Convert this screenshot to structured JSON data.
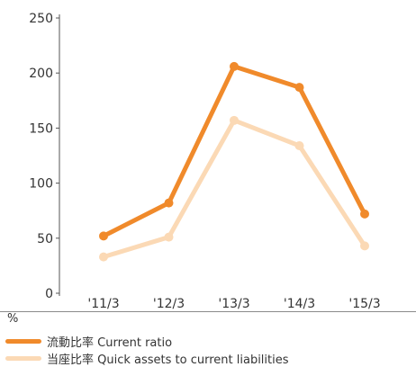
{
  "chart_data": {
    "type": "line",
    "categories": [
      "'11/3",
      "'12/3",
      "'13/3",
      "'14/3",
      "'15/3"
    ],
    "series": [
      {
        "name": "流動比率 Current ratio",
        "values": [
          52,
          82,
          206,
          187,
          72
        ],
        "color": "#f08a2b"
      },
      {
        "name": "当座比率 Quick assets to current liabilities",
        "values": [
          33,
          51,
          157,
          134,
          43
        ],
        "color": "#fbd9b5"
      }
    ],
    "ylim": [
      0,
      250
    ],
    "yticks": [
      0,
      50,
      100,
      150,
      200,
      250
    ],
    "ylabel": "%",
    "grid": false,
    "legend": "bottom-left"
  }
}
